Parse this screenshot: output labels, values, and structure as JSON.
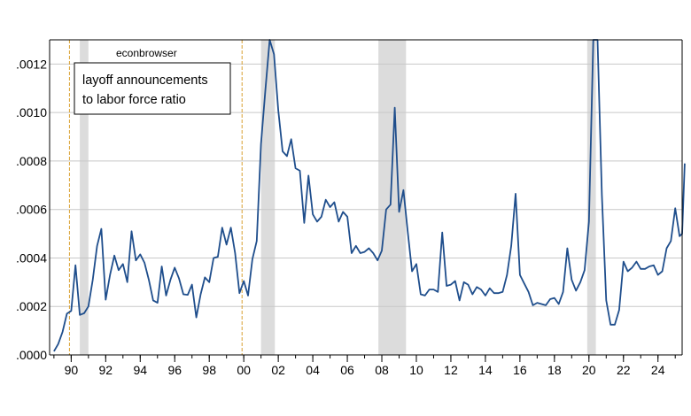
{
  "chart_data": {
    "type": "line",
    "watermark": "econbrowser",
    "legend": {
      "lines": [
        "layoff announcements",
        "to labor force ratio"
      ],
      "placement": "top-left"
    },
    "colors": {
      "series": "#1f4e8c",
      "recession": "#dcdcdc",
      "event_line": "#d9a030",
      "grid": "#c8c8c8"
    },
    "x_tick_labels": [
      "90",
      "92",
      "94",
      "96",
      "98",
      "00",
      "02",
      "04",
      "06",
      "08",
      "10",
      "12",
      "14",
      "16",
      "18",
      "20",
      "22",
      "24"
    ],
    "x_tick_years": [
      1990,
      1992,
      1994,
      1996,
      1998,
      2000,
      2002,
      2004,
      2006,
      2008,
      2010,
      2012,
      2014,
      2016,
      2018,
      2020,
      2022,
      2024
    ],
    "y_tick_labels": [
      ".0000",
      ".0002",
      ".0004",
      ".0006",
      ".0008",
      ".0010",
      ".0012"
    ],
    "y_tick_values": [
      0,
      0.0002,
      0.0004,
      0.0006,
      0.0008,
      0.001,
      0.0012
    ],
    "ylim": [
      0,
      0.0013
    ],
    "xlim": [
      1988.75,
      2025.4
    ],
    "grid": true,
    "recessions": [
      [
        1990.5,
        1991.0
      ],
      [
        2001.0,
        2001.8
      ],
      [
        2007.8,
        2009.4
      ],
      [
        2019.9,
        2020.4
      ]
    ],
    "event_lines": [
      1989.9,
      1999.9
    ],
    "series": [
      {
        "name": "layoff announcements to labor force ratio",
        "points": [
          [
            1989.0,
            1.5e-05
          ],
          [
            1989.25,
            4.5e-05
          ],
          [
            1989.5,
            9.5e-05
          ],
          [
            1989.75,
            0.00017
          ],
          [
            1990.0,
            0.000182
          ],
          [
            1990.25,
            0.00037
          ],
          [
            1990.5,
            0.000165
          ],
          [
            1990.75,
            0.000172
          ],
          [
            1991.0,
            0.0002
          ],
          [
            1991.25,
            0.00031
          ],
          [
            1991.5,
            0.00045
          ],
          [
            1991.75,
            0.00052
          ],
          [
            1992.0,
            0.000228
          ],
          [
            1992.25,
            0.00033
          ],
          [
            1992.5,
            0.00041
          ],
          [
            1992.75,
            0.00035
          ],
          [
            1993.0,
            0.000375
          ],
          [
            1993.25,
            0.0003
          ],
          [
            1993.5,
            0.00051
          ],
          [
            1993.75,
            0.00039
          ],
          [
            1994.0,
            0.000415
          ],
          [
            1994.25,
            0.00038
          ],
          [
            1994.5,
            0.00031
          ],
          [
            1994.75,
            0.000225
          ],
          [
            1995.0,
            0.000215
          ],
          [
            1995.25,
            0.000365
          ],
          [
            1995.5,
            0.000245
          ],
          [
            1995.75,
            0.00031
          ],
          [
            1996.0,
            0.00036
          ],
          [
            1996.25,
            0.000315
          ],
          [
            1996.5,
            0.00025
          ],
          [
            1996.75,
            0.000248
          ],
          [
            1997.0,
            0.00029
          ],
          [
            1997.25,
            0.000155
          ],
          [
            1997.5,
            0.00025
          ],
          [
            1997.75,
            0.00032
          ],
          [
            1998.0,
            0.0003
          ],
          [
            1998.25,
            0.0004
          ],
          [
            1998.5,
            0.000405
          ],
          [
            1998.75,
            0.000525
          ],
          [
            1999.0,
            0.000455
          ],
          [
            1999.25,
            0.000525
          ],
          [
            1999.5,
            0.00042
          ],
          [
            1999.75,
            0.000255
          ],
          [
            2000.0,
            0.000305
          ],
          [
            2000.25,
            0.000245
          ],
          [
            2000.5,
            0.000395
          ],
          [
            2000.75,
            0.00047
          ],
          [
            2001.0,
            0.00087
          ],
          [
            2001.25,
            0.00109
          ],
          [
            2001.5,
            0.0013
          ],
          [
            2001.75,
            0.00124
          ],
          [
            2002.0,
            0.00101
          ],
          [
            2002.25,
            0.00084
          ],
          [
            2002.5,
            0.00082
          ],
          [
            2002.75,
            0.00089
          ],
          [
            2003.0,
            0.00077
          ],
          [
            2003.25,
            0.00076
          ],
          [
            2003.5,
            0.000545
          ],
          [
            2003.75,
            0.00074
          ],
          [
            2004.0,
            0.00058
          ],
          [
            2004.25,
            0.00055
          ],
          [
            2004.5,
            0.00057
          ],
          [
            2004.75,
            0.00064
          ],
          [
            2005.0,
            0.00061
          ],
          [
            2005.25,
            0.00063
          ],
          [
            2005.5,
            0.00055
          ],
          [
            2005.75,
            0.00059
          ],
          [
            2006.0,
            0.00057
          ],
          [
            2006.25,
            0.00042
          ],
          [
            2006.5,
            0.00045
          ],
          [
            2006.75,
            0.00042
          ],
          [
            2007.0,
            0.000425
          ],
          [
            2007.25,
            0.00044
          ],
          [
            2007.5,
            0.00042
          ],
          [
            2007.75,
            0.00039
          ],
          [
            2008.0,
            0.00043
          ],
          [
            2008.25,
            0.0006
          ],
          [
            2008.5,
            0.00062
          ],
          [
            2008.75,
            0.00102
          ],
          [
            2009.0,
            0.00059
          ],
          [
            2009.25,
            0.00068
          ],
          [
            2009.5,
            0.00051
          ],
          [
            2009.75,
            0.000345
          ],
          [
            2010.0,
            0.000375
          ],
          [
            2010.25,
            0.00025
          ],
          [
            2010.5,
            0.000245
          ],
          [
            2010.75,
            0.00027
          ],
          [
            2011.0,
            0.00027
          ],
          [
            2011.25,
            0.00026
          ],
          [
            2011.5,
            0.000505
          ],
          [
            2011.75,
            0.000285
          ],
          [
            2012.0,
            0.00029
          ],
          [
            2012.25,
            0.000305
          ],
          [
            2012.5,
            0.000225
          ],
          [
            2012.75,
            0.0003
          ],
          [
            2013.0,
            0.00029
          ],
          [
            2013.25,
            0.00025
          ],
          [
            2013.5,
            0.00028
          ],
          [
            2013.75,
            0.00027
          ],
          [
            2014.0,
            0.000245
          ],
          [
            2014.25,
            0.000275
          ],
          [
            2014.5,
            0.000255
          ],
          [
            2014.75,
            0.000255
          ],
          [
            2015.0,
            0.00026
          ],
          [
            2015.25,
            0.00033
          ],
          [
            2015.5,
            0.00045
          ],
          [
            2015.75,
            0.000665
          ],
          [
            2016.0,
            0.00033
          ],
          [
            2016.25,
            0.000295
          ],
          [
            2016.5,
            0.00026
          ],
          [
            2016.75,
            0.000205
          ],
          [
            2017.0,
            0.000215
          ],
          [
            2017.25,
            0.00021
          ],
          [
            2017.5,
            0.000205
          ],
          [
            2017.75,
            0.00023
          ],
          [
            2018.0,
            0.000235
          ],
          [
            2018.25,
            0.00021
          ],
          [
            2018.5,
            0.00026
          ],
          [
            2018.75,
            0.00044
          ],
          [
            2019.0,
            0.00031
          ],
          [
            2019.25,
            0.000265
          ],
          [
            2019.5,
            0.0003
          ],
          [
            2019.75,
            0.00035
          ],
          [
            2020.0,
            0.00055
          ],
          [
            2020.25,
            0.0013
          ],
          [
            2020.5,
            0.0013
          ],
          [
            2020.75,
            0.00066
          ],
          [
            2021.0,
            0.000225
          ],
          [
            2021.25,
            0.000125
          ],
          [
            2021.5,
            0.000125
          ],
          [
            2021.75,
            0.000185
          ],
          [
            2022.0,
            0.000385
          ],
          [
            2022.25,
            0.000345
          ],
          [
            2022.5,
            0.00036
          ],
          [
            2022.75,
            0.000385
          ],
          [
            2023.0,
            0.000355
          ],
          [
            2023.25,
            0.000355
          ],
          [
            2023.5,
            0.000365
          ],
          [
            2023.75,
            0.00037
          ],
          [
            2024.0,
            0.00033
          ],
          [
            2024.25,
            0.000345
          ],
          [
            2024.5,
            0.00044
          ],
          [
            2024.75,
            0.00047
          ],
          [
            2025.0,
            0.000605
          ],
          [
            2025.25,
            0.00049
          ],
          [
            2025.4,
            0.0005
          ],
          [
            2025.55,
            0.00079
          ]
        ]
      }
    ]
  }
}
